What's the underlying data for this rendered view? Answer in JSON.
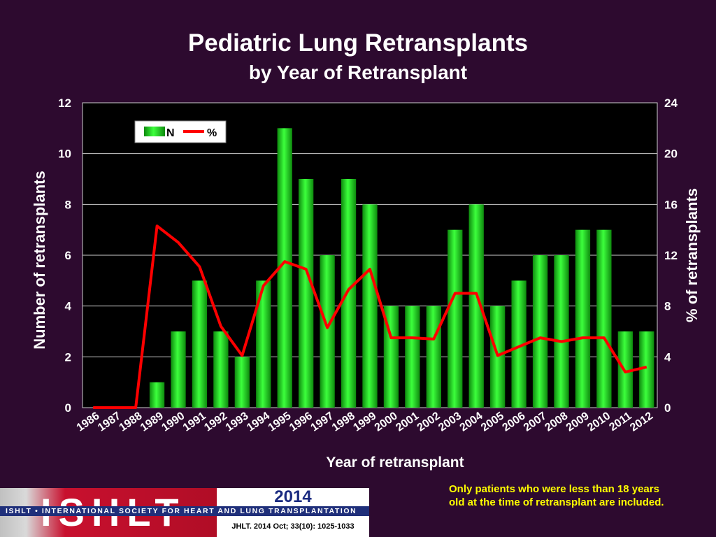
{
  "chart_data": {
    "type": "bar",
    "title": "Pediatric Lung Retransplants",
    "subtitle": "by Year of Retransplant",
    "xlabel": "Year of retransplant",
    "ylabel": "Number of retransplants",
    "y2label": "% of retransplants",
    "ylim": [
      0,
      12
    ],
    "y2lim": [
      0,
      24
    ],
    "yticks": [
      0,
      2,
      4,
      6,
      8,
      10,
      12
    ],
    "y2ticks": [
      0,
      4,
      8,
      12,
      16,
      20,
      24
    ],
    "legend_position": "top-left",
    "categories": [
      "1986",
      "1987",
      "1988",
      "1989",
      "1990",
      "1991",
      "1992",
      "1993",
      "1994",
      "1995",
      "1996",
      "1997",
      "1998",
      "1999",
      "2000",
      "2001",
      "2002",
      "2003",
      "2004",
      "2005",
      "2006",
      "2007",
      "2008",
      "2009",
      "2010",
      "2011",
      "2012"
    ],
    "series": [
      {
        "name": "N",
        "type": "bar",
        "axis": "left",
        "color": "#22e022",
        "values": [
          0,
          0,
          0,
          1,
          3,
          5,
          3,
          2,
          5,
          11,
          9,
          6,
          9,
          8,
          4,
          4,
          4,
          7,
          8,
          4,
          5,
          6,
          6,
          7,
          7,
          3,
          3
        ]
      },
      {
        "name": "%",
        "type": "line",
        "axis": "right",
        "color": "#ff0000",
        "values": [
          0,
          0,
          0,
          14.3,
          13.0,
          11.1,
          6.4,
          4.1,
          9.6,
          11.5,
          10.9,
          6.3,
          9.3,
          10.9,
          5.5,
          5.5,
          5.4,
          9.0,
          9.0,
          4.1,
          4.8,
          5.5,
          5.2,
          5.5,
          5.5,
          2.8,
          3.2
        ]
      }
    ]
  },
  "footer": {
    "note_line1": "Only patients who were less than 18 years",
    "note_line2": "old at the time of retransplant are included.",
    "year": "2014",
    "logo": "ISHLT",
    "org": "ISHLT • INTERNATIONAL SOCIETY FOR HEART AND LUNG TRANSPLANTATION",
    "citation": "JHLT. 2014 Oct; 33(10): 1025-1033"
  }
}
